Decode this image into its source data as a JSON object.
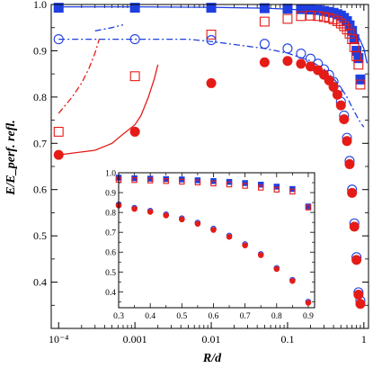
{
  "chart_data": [
    {
      "type": "scatter",
      "title": "",
      "xlabel": "R/d",
      "ylabel": "E/E_perf. refl.",
      "xscale": "log",
      "xlim": [
        8e-05,
        1.15
      ],
      "ylim": [
        0.3,
        1.0
      ],
      "x_tick_labels": [
        "10⁻⁴",
        "0.001",
        "0.01",
        "0.1",
        "1"
      ],
      "x_ticks": [
        0.0001,
        0.001,
        0.01,
        0.1,
        1
      ],
      "y_ticks": [
        0.4,
        0.5,
        0.6,
        0.7,
        0.8,
        0.9,
        1.0
      ],
      "y_tick_labels": [
        "0.4",
        "0.5",
        "0.6",
        "0.7",
        "0.8",
        "0.9",
        "1.0"
      ],
      "colors": {
        "blue": "#1f3fe0",
        "red": "#e51b17"
      },
      "series": [
        {
          "marker": "filled-square",
          "color": "#1f3fe0",
          "points": [
            [
              0.0001,
              0.993
            ],
            [
              0.001,
              0.993
            ],
            [
              0.01,
              0.993
            ],
            [
              0.05,
              0.992
            ],
            [
              0.1,
              0.991
            ],
            [
              0.15,
              0.99
            ],
            [
              0.2,
              0.989
            ],
            [
              0.25,
              0.988
            ],
            [
              0.3,
              0.986
            ],
            [
              0.35,
              0.984
            ],
            [
              0.4,
              0.982
            ],
            [
              0.45,
              0.979
            ],
            [
              0.5,
              0.976
            ],
            [
              0.55,
              0.971
            ],
            [
              0.6,
              0.964
            ],
            [
              0.65,
              0.955
            ],
            [
              0.7,
              0.943
            ],
            [
              0.75,
              0.925
            ],
            [
              0.8,
              0.9
            ],
            [
              0.85,
              0.884
            ],
            [
              0.9,
              0.838
            ]
          ]
        },
        {
          "marker": "open-square",
          "color": "#e51b17",
          "points": [
            [
              0.0001,
              0.725
            ],
            [
              0.001,
              0.845
            ],
            [
              0.01,
              0.935
            ],
            [
              0.05,
              0.963
            ],
            [
              0.1,
              0.969
            ],
            [
              0.15,
              0.975
            ],
            [
              0.2,
              0.976
            ],
            [
              0.25,
              0.975
            ],
            [
              0.3,
              0.973
            ],
            [
              0.35,
              0.971
            ],
            [
              0.4,
              0.968
            ],
            [
              0.45,
              0.964
            ],
            [
              0.5,
              0.959
            ],
            [
              0.55,
              0.953
            ],
            [
              0.6,
              0.946
            ],
            [
              0.65,
              0.937
            ],
            [
              0.7,
              0.925
            ],
            [
              0.75,
              0.908
            ],
            [
              0.8,
              0.888
            ],
            [
              0.85,
              0.87
            ],
            [
              0.9,
              0.827
            ]
          ]
        },
        {
          "marker": "open-circle",
          "color": "#1f3fe0",
          "points": [
            [
              0.0001,
              0.925
            ],
            [
              0.001,
              0.925
            ],
            [
              0.01,
              0.923
            ],
            [
              0.05,
              0.915
            ],
            [
              0.1,
              0.905
            ],
            [
              0.15,
              0.894
            ],
            [
              0.2,
              0.883
            ],
            [
              0.25,
              0.872
            ],
            [
              0.3,
              0.86
            ],
            [
              0.35,
              0.848
            ],
            [
              0.4,
              0.833
            ],
            [
              0.45,
              0.815
            ],
            [
              0.5,
              0.79
            ],
            [
              0.55,
              0.76
            ],
            [
              0.6,
              0.712
            ],
            [
              0.65,
              0.662
            ],
            [
              0.7,
              0.6
            ],
            [
              0.75,
              0.527
            ],
            [
              0.8,
              0.454
            ],
            [
              0.85,
              0.378
            ],
            [
              0.9,
              0.36
            ]
          ]
        },
        {
          "marker": "filled-circle",
          "color": "#e51b17",
          "points": [
            [
              0.0001,
              0.675
            ],
            [
              0.001,
              0.725
            ],
            [
              0.01,
              0.83
            ],
            [
              0.05,
              0.875
            ],
            [
              0.1,
              0.878
            ],
            [
              0.15,
              0.872
            ],
            [
              0.2,
              0.866
            ],
            [
              0.25,
              0.858
            ],
            [
              0.3,
              0.848
            ],
            [
              0.35,
              0.836
            ],
            [
              0.4,
              0.822
            ],
            [
              0.45,
              0.805
            ],
            [
              0.5,
              0.782
            ],
            [
              0.55,
              0.752
            ],
            [
              0.6,
              0.705
            ],
            [
              0.65,
              0.655
            ],
            [
              0.7,
              0.593
            ],
            [
              0.75,
              0.52
            ],
            [
              0.8,
              0.448
            ],
            [
              0.85,
              0.373
            ],
            [
              0.9,
              0.353
            ]
          ]
        }
      ],
      "curves": [
        {
          "style": "solid",
          "color": "#1f3fe0",
          "points": [
            [
              0.0001,
              0.995
            ],
            [
              0.001,
              0.995
            ],
            [
              0.01,
              0.994
            ],
            [
              0.05,
              0.992
            ],
            [
              0.1,
              0.99
            ],
            [
              0.2,
              0.987
            ],
            [
              0.3,
              0.983
            ],
            [
              0.4,
              0.979
            ],
            [
              0.5,
              0.973
            ],
            [
              0.6,
              0.965
            ],
            [
              0.7,
              0.954
            ],
            [
              0.8,
              0.938
            ],
            [
              0.9,
              0.922
            ],
            [
              1.0,
              0.905
            ],
            [
              1.1,
              0.873
            ]
          ]
        },
        {
          "style": "dash-dot",
          "color": "#1f3fe0",
          "points": [
            [
              0.0001,
              0.925
            ],
            [
              0.001,
              0.925
            ],
            [
              0.005,
              0.925
            ],
            [
              0.01,
              0.92
            ],
            [
              0.05,
              0.905
            ],
            [
              0.1,
              0.895
            ],
            [
              0.2,
              0.878
            ],
            [
              0.3,
              0.86
            ],
            [
              0.4,
              0.84
            ],
            [
              0.5,
              0.82
            ],
            [
              0.6,
              0.8
            ],
            [
              0.7,
              0.778
            ],
            [
              0.8,
              0.76
            ],
            [
              0.9,
              0.745
            ],
            [
              1.0,
              0.735
            ]
          ]
        },
        {
          "style": "dash-dot",
          "color": "#1f3fe0",
          "points": [
            [
              0.0003,
              0.943
            ],
            [
              0.0005,
              0.95
            ],
            [
              0.0007,
              0.956
            ]
          ]
        },
        {
          "style": "dash-dot",
          "color": "#e51b17",
          "points": [
            [
              0.0001,
              0.765
            ],
            [
              0.00015,
              0.8
            ],
            [
              0.0002,
              0.83
            ],
            [
              0.00025,
              0.862
            ],
            [
              0.0003,
              0.895
            ],
            [
              0.00034,
              0.925
            ]
          ]
        },
        {
          "style": "solid",
          "color": "#e51b17",
          "points": [
            [
              0.0001,
              0.675
            ],
            [
              0.0003,
              0.685
            ],
            [
              0.0005,
              0.7
            ],
            [
              0.0007,
              0.72
            ],
            [
              0.001,
              0.74
            ],
            [
              0.0012,
              0.76
            ],
            [
              0.0015,
              0.8
            ],
            [
              0.0018,
              0.84
            ],
            [
              0.002,
              0.87
            ]
          ]
        }
      ]
    },
    {
      "type": "scatter",
      "title": "",
      "xscale": "linear",
      "xlim": [
        0.3,
        0.92
      ],
      "ylim": [
        0.32,
        1.0
      ],
      "x_ticks": [
        0.3,
        0.4,
        0.5,
        0.6,
        0.7,
        0.8,
        0.9
      ],
      "x_tick_labels": [
        "0.3",
        "0.4",
        "0.5",
        "0.6",
        "0.7",
        "0.8",
        "0.9"
      ],
      "y_ticks": [
        0.4,
        0.5,
        0.6,
        0.7,
        0.8,
        0.9,
        1.0
      ],
      "y_tick_labels": [
        "0.4",
        "0.5",
        "0.6",
        "0.7",
        "0.8",
        "0.9",
        "1.0"
      ],
      "series": [
        {
          "marker": "open-circle",
          "color": "#1f3fe0",
          "points": [
            [
              0.3,
              0.84
            ],
            [
              0.35,
              0.823
            ],
            [
              0.4,
              0.808
            ],
            [
              0.45,
              0.79
            ],
            [
              0.5,
              0.77
            ],
            [
              0.55,
              0.748
            ],
            [
              0.6,
              0.718
            ],
            [
              0.65,
              0.683
            ],
            [
              0.7,
              0.64
            ],
            [
              0.75,
              0.59
            ],
            [
              0.8,
              0.52
            ],
            [
              0.85,
              0.46
            ],
            [
              0.9,
              0.35
            ]
          ]
        },
        {
          "marker": "filled-circle",
          "color": "#e51b17",
          "points": [
            [
              0.3,
              0.835
            ],
            [
              0.35,
              0.818
            ],
            [
              0.4,
              0.803
            ],
            [
              0.45,
              0.785
            ],
            [
              0.5,
              0.765
            ],
            [
              0.55,
              0.743
            ],
            [
              0.6,
              0.712
            ],
            [
              0.65,
              0.677
            ],
            [
              0.7,
              0.634
            ],
            [
              0.75,
              0.585
            ],
            [
              0.8,
              0.515
            ],
            [
              0.85,
              0.455
            ],
            [
              0.9,
              0.345
            ]
          ]
        },
        {
          "marker": "filled-square",
          "color": "#1f3fe0",
          "points": [
            [
              0.3,
              0.975
            ],
            [
              0.35,
              0.972
            ],
            [
              0.4,
              0.97
            ],
            [
              0.45,
              0.968
            ],
            [
              0.5,
              0.966
            ],
            [
              0.55,
              0.962
            ],
            [
              0.6,
              0.958
            ],
            [
              0.65,
              0.954
            ],
            [
              0.7,
              0.948
            ],
            [
              0.75,
              0.94
            ],
            [
              0.8,
              0.93
            ],
            [
              0.85,
              0.918
            ],
            [
              0.9,
              0.83
            ]
          ]
        },
        {
          "marker": "open-square",
          "color": "#e51b17",
          "points": [
            [
              0.3,
              0.965
            ],
            [
              0.35,
              0.963
            ],
            [
              0.4,
              0.961
            ],
            [
              0.45,
              0.958
            ],
            [
              0.5,
              0.955
            ],
            [
              0.55,
              0.951
            ],
            [
              0.6,
              0.946
            ],
            [
              0.65,
              0.941
            ],
            [
              0.7,
              0.934
            ],
            [
              0.75,
              0.925
            ],
            [
              0.8,
              0.915
            ],
            [
              0.85,
              0.905
            ],
            [
              0.9,
              0.825
            ]
          ]
        }
      ]
    }
  ]
}
